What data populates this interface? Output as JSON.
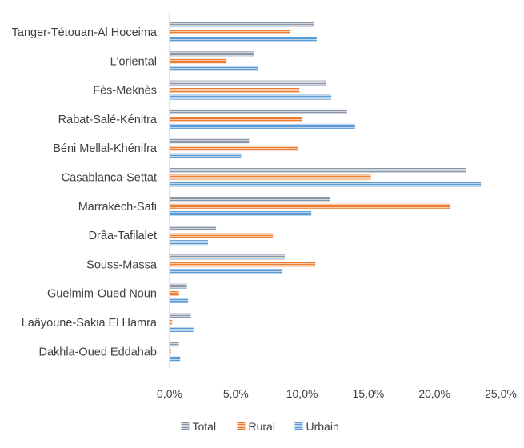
{
  "chart_data": {
    "type": "bar",
    "orientation": "horizontal",
    "categories": [
      "Tanger-Tétouan-Al Hoceima",
      "L'oriental",
      "Fès-Meknès",
      "Rabat-Salé-Kénitra",
      "Béni Mellal-Khénifra",
      "Casablanca-Settat",
      "Marrakech-Safi",
      "Drâa-Tafilalet",
      "Souss-Massa",
      "Guelmim-Oued Noun",
      "Laâyoune-Sakia El Hamra",
      "Dakhla-Oued Eddahab"
    ],
    "series": [
      {
        "name": "Total",
        "color": "#8a97a8",
        "values": [
          10.9,
          6.4,
          11.8,
          13.4,
          6.0,
          22.4,
          12.1,
          3.5,
          8.7,
          1.3,
          1.6,
          0.7
        ]
      },
      {
        "name": "Rural",
        "color": "#ed7d31",
        "values": [
          9.1,
          4.3,
          9.8,
          10.0,
          9.7,
          15.2,
          21.2,
          7.8,
          11.0,
          0.7,
          0.2,
          0.1
        ]
      },
      {
        "name": "Urbain",
        "color": "#5b9bd5",
        "values": [
          11.1,
          6.7,
          12.2,
          14.0,
          5.4,
          23.5,
          10.7,
          2.9,
          8.5,
          1.4,
          1.8,
          0.8
        ]
      }
    ],
    "xlim": [
      0,
      25
    ],
    "xticks": [
      0,
      5,
      10,
      15,
      20,
      25
    ],
    "xtick_labels": [
      "0,0%",
      "5,0%",
      "10,0%",
      "15,0%",
      "20,0%",
      "25,0%"
    ],
    "title": "",
    "xlabel": "",
    "ylabel": "",
    "grid": false,
    "legend": "bottom",
    "bar_pattern": "horizontal-stripes"
  }
}
